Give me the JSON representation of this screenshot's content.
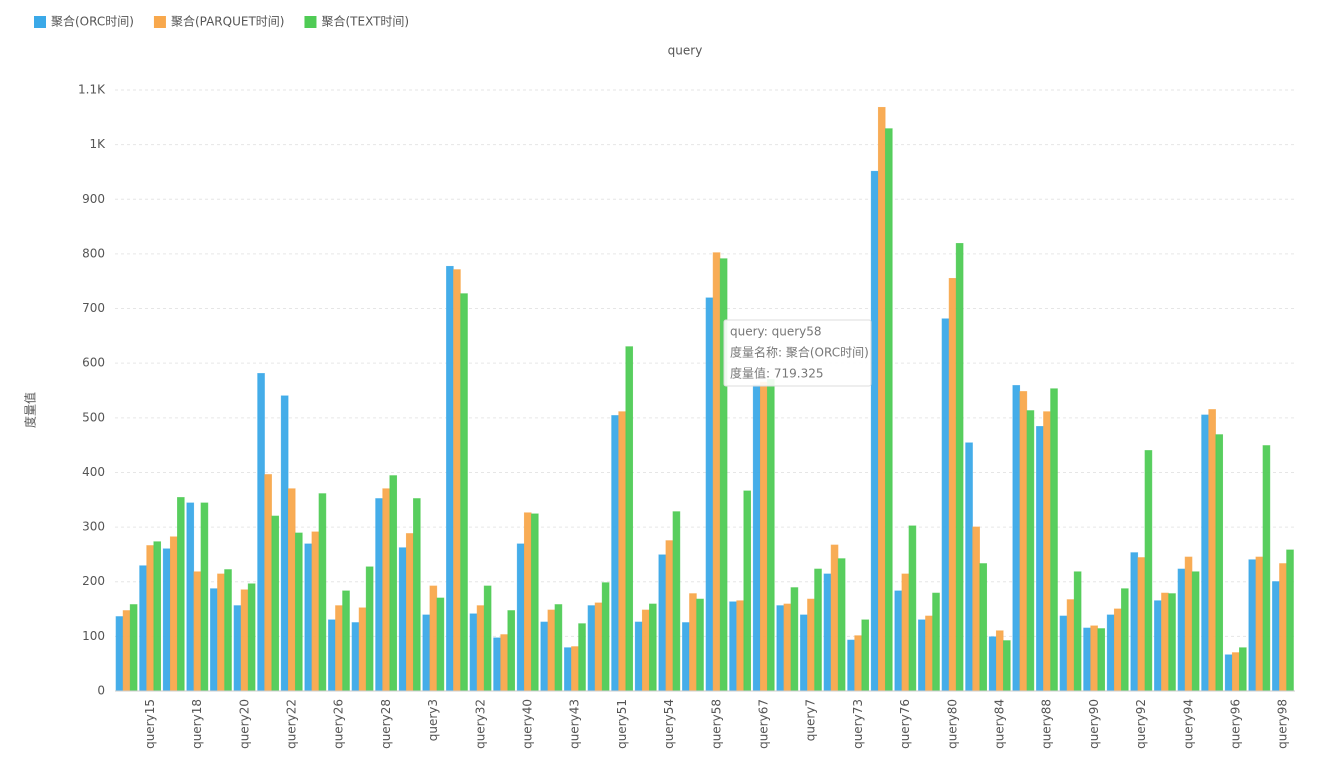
{
  "chart_data": {
    "type": "bar",
    "title": "query",
    "y_label": "度量值",
    "categories": [
      null,
      "query15",
      null,
      "query18",
      null,
      "query20",
      null,
      "query22",
      null,
      "query26",
      null,
      "query28",
      null,
      "query3",
      null,
      "query32",
      null,
      "query40",
      null,
      "query43",
      null,
      "query51",
      null,
      "query54",
      null,
      "query58",
      null,
      "query67",
      null,
      "query7",
      null,
      "query73",
      null,
      "query76",
      null,
      "query80",
      null,
      "query84",
      null,
      "query88",
      null,
      "query90",
      null,
      "query92",
      null,
      "query94",
      null,
      "query96",
      null,
      "query98"
    ],
    "series": [
      {
        "name": "聚合(ORC时间)",
        "color": "#3ba9e8",
        "values": [
          136,
          229,
          260,
          344,
          187,
          156,
          581,
          540,
          269,
          130,
          125,
          352,
          262,
          139,
          777,
          141,
          97,
          269,
          126,
          79,
          156,
          504,
          126,
          249,
          125,
          719.325,
          163,
          560,
          156,
          139,
          214,
          93,
          951,
          183,
          130,
          681,
          454,
          99,
          559,
          484,
          137,
          115,
          139,
          253,
          165,
          223,
          505,
          66,
          240,
          200
        ]
      },
      {
        "name": "聚合(PARQUET时间)",
        "color": "#f8a84c",
        "values": [
          147,
          266,
          282,
          218,
          214,
          185,
          396,
          370,
          291,
          156,
          152,
          370,
          288,
          192,
          771,
          156,
          103,
          326,
          148,
          81,
          161,
          511,
          148,
          275,
          178,
          802,
          165,
          565,
          159,
          168,
          267,
          101,
          1068,
          214,
          137,
          755,
          300,
          110,
          548,
          511,
          167,
          119,
          150,
          244,
          179,
          245,
          515,
          70,
          245,
          233
        ]
      },
      {
        "name": "聚合(TEXT时间)",
        "color": "#4fcb55",
        "values": [
          158,
          273,
          354,
          344,
          222,
          196,
          320,
          289,
          361,
          183,
          227,
          394,
          352,
          170,
          727,
          192,
          147,
          324,
          158,
          123,
          198,
          630,
          159,
          328,
          168,
          791,
          366,
          570,
          189,
          223,
          242,
          130,
          1029,
          302,
          179,
          819,
          233,
          92,
          513,
          553,
          218,
          114,
          187,
          440,
          178,
          218,
          469,
          79,
          449,
          258
        ]
      }
    ],
    "ylim": [
      0,
      1100
    ],
    "yticks": [
      0,
      100,
      200,
      300,
      400,
      500,
      600,
      700,
      800,
      900,
      {
        "value": 1000,
        "label": "1K"
      },
      {
        "value": 1100,
        "label": "1.1K"
      }
    ],
    "grid": true,
    "legend": "top-left",
    "tooltip": {
      "lines": [
        "query: query58",
        "度量名称: 聚合(ORC时间)",
        "度量值: 719.325"
      ]
    }
  }
}
